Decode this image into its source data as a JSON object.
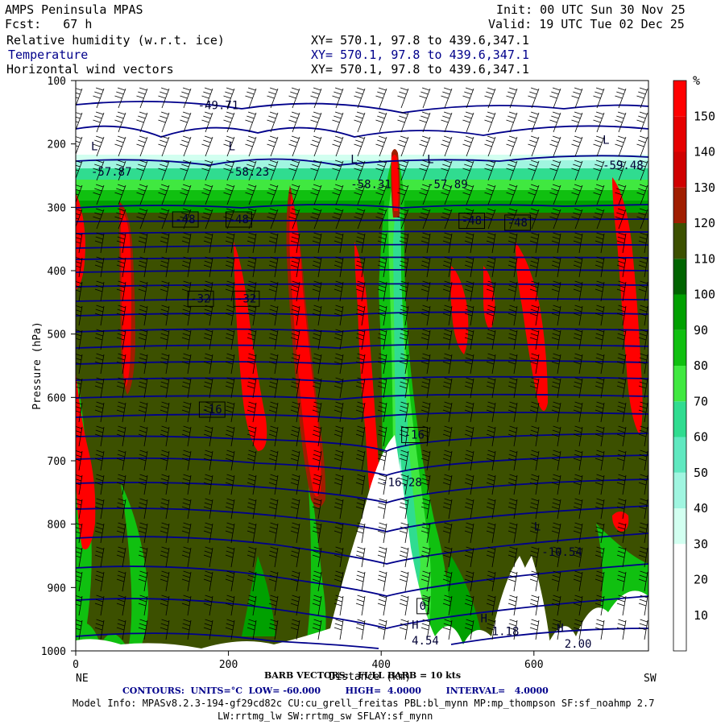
{
  "header": {
    "model": "AMPS Peninsula MPAS",
    "init": "Init: 00 UTC Sun 30 Nov 25",
    "fcst": "Fcst:   67 h",
    "valid": "Valid: 19 UTC Tue 02 Dec 25",
    "fields": [
      {
        "name": "Relative humidity (w.r.t. ice)",
        "xy": "XY= 570.1, 97.8 to 439.6,347.1"
      },
      {
        "name": "Temperature",
        "xy": "XY= 570.1, 97.8 to 439.6,347.1"
      },
      {
        "name": "Horizontal wind vectors",
        "xy": "XY= 570.1, 97.8 to 439.6,347.1"
      }
    ]
  },
  "chart_data": {
    "type": "heatmap",
    "title": "Relative humidity (w.r.t. ice)",
    "xlabel": "Distance (km)",
    "ylabel": "Pressure (hPa)",
    "xlim": [
      0,
      750
    ],
    "ylim": [
      1000,
      100
    ],
    "x_ticks": [
      0,
      200,
      400,
      600
    ],
    "y_ticks": [
      100,
      200,
      300,
      400,
      500,
      600,
      700,
      800,
      900,
      1000
    ],
    "x_end_labels": {
      "left": "NE",
      "right": "SW"
    },
    "colorbar": {
      "unit": "%",
      "levels": [
        0,
        10,
        20,
        30,
        40,
        50,
        60,
        70,
        80,
        90,
        100,
        110,
        120,
        130,
        140,
        150
      ],
      "colors": [
        "#ffffff",
        "#ffffff",
        "#ffffff",
        "#d2fff0",
        "#a0f5e0",
        "#60e8c0",
        "#30dc90",
        "#40e840",
        "#10c010",
        "#00a000",
        "#006400",
        "#3c5000",
        "#a01e00",
        "#d00000",
        "#e60000",
        "#ff0000"
      ]
    },
    "temperature_labels": [
      {
        "x": 20,
        "p": 210,
        "text": "L"
      },
      {
        "x": 20,
        "p": 250,
        "text": "-57.87"
      },
      {
        "x": 200,
        "p": 210,
        "text": "L"
      },
      {
        "x": 200,
        "p": 250,
        "text": "-58.23"
      },
      {
        "x": 360,
        "p": 230,
        "text": "L"
      },
      {
        "x": 360,
        "p": 270,
        "text": "-58.31"
      },
      {
        "x": 460,
        "p": 230,
        "text": "L"
      },
      {
        "x": 460,
        "p": 270,
        "text": "-57.89"
      },
      {
        "x": 690,
        "p": 200,
        "text": "L"
      },
      {
        "x": 690,
        "p": 240,
        "text": "-59.48"
      },
      {
        "x": 160,
        "p": 145,
        "text": "-49.71"
      },
      {
        "x": 130,
        "p": 325,
        "text": "-48"
      },
      {
        "x": 200,
        "p": 325,
        "text": "-48"
      },
      {
        "x": 505,
        "p": 327,
        "text": "-48"
      },
      {
        "x": 565,
        "p": 330,
        "text": "-48"
      },
      {
        "x": 150,
        "p": 450,
        "text": "-32"
      },
      {
        "x": 210,
        "p": 450,
        "text": "-32"
      },
      {
        "x": 165,
        "p": 625,
        "text": "-16"
      },
      {
        "x": 430,
        "p": 665,
        "text": "-16"
      },
      {
        "x": 400,
        "p": 740,
        "text": "-16.28"
      },
      {
        "x": 600,
        "p": 810,
        "text": "L"
      },
      {
        "x": 610,
        "p": 850,
        "text": "-10.54"
      },
      {
        "x": 450,
        "p": 935,
        "text": "0"
      },
      {
        "x": 440,
        "p": 965,
        "text": "H"
      },
      {
        "x": 440,
        "p": 990,
        "text": "4.54"
      },
      {
        "x": 530,
        "p": 955,
        "text": "H"
      },
      {
        "x": 545,
        "p": 975,
        "text": "1.18"
      },
      {
        "x": 630,
        "p": 970,
        "text": "H"
      },
      {
        "x": 640,
        "p": 995,
        "text": "2.00"
      }
    ]
  },
  "footer": {
    "barb": "BARB VECTORS:   FULL BARB = 10 kts",
    "contours": "CONTOURS:  UNITS=°C  LOW= -60.000        HIGH=  4.0000        INTERVAL=   4.0000",
    "model_info": "Model Info: MPASv8.2.3-194-gf29cd82c CU:cu_grell_freitas PBL:bl_mynn MP:mp_thompson SF:sf_noahmp 2.7",
    "model_info2": "LW:rrtmg_lw SW:rrtmg_sw SFLAY:sf_mynn"
  }
}
